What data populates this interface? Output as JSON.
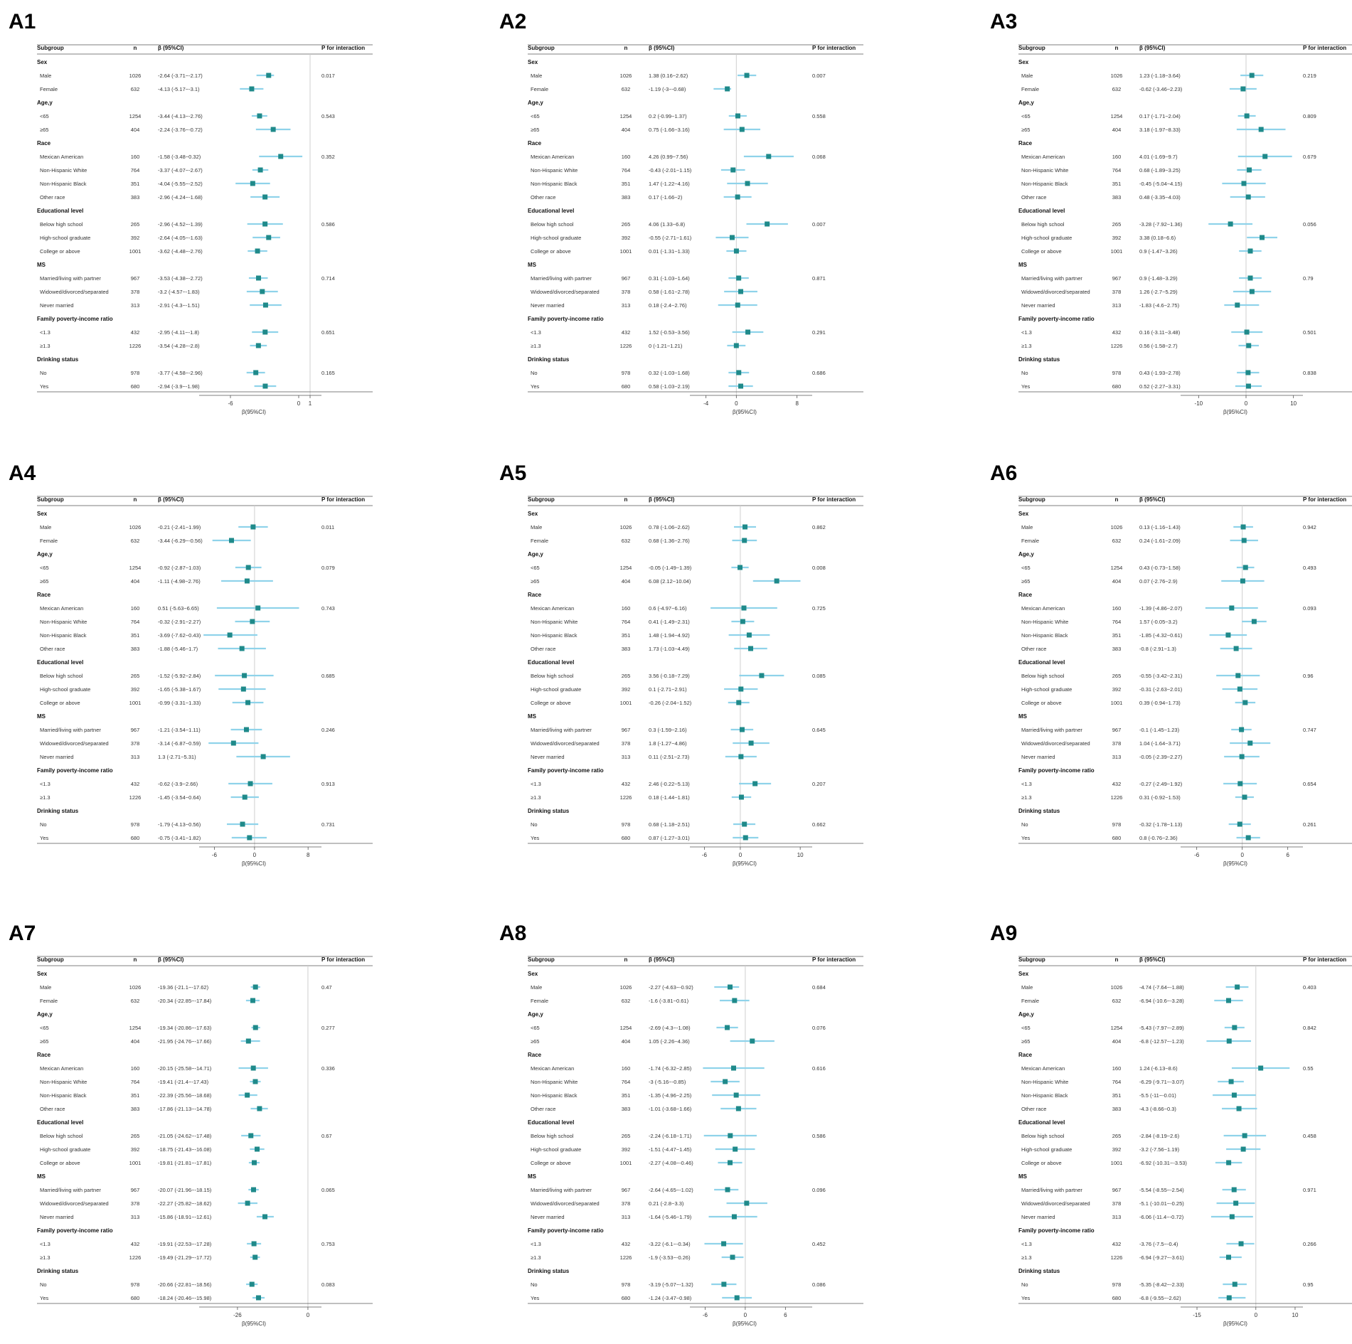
{
  "chart_data": {
    "type": "forest",
    "header": {
      "subgroup": "Subgroup",
      "n": "n",
      "beta": "β (95%CI)",
      "p": "P for interaction"
    },
    "xlabel": "β(95%CI)",
    "rows": [
      {
        "label": "Sex",
        "group": true
      },
      {
        "label": "Male",
        "n": 1026
      },
      {
        "label": "Female",
        "n": 632
      },
      {
        "label": "Age,y",
        "group": true
      },
      {
        "label": "<65",
        "n": 1254
      },
      {
        "label": "≥65",
        "n": 404
      },
      {
        "label": "Race",
        "group": true
      },
      {
        "label": "Mexican American",
        "n": 160
      },
      {
        "label": "Non-Hispanic White",
        "n": 764
      },
      {
        "label": "Non-Hispanic Black",
        "n": 351
      },
      {
        "label": "Other race",
        "n": 383
      },
      {
        "label": "Educational level",
        "group": true
      },
      {
        "label": "Below high school",
        "n": 265
      },
      {
        "label": "High-school graduate",
        "n": 392
      },
      {
        "label": "College or above",
        "n": 1001
      },
      {
        "label": "MS",
        "group": true
      },
      {
        "label": "Married/living with partner",
        "n": 967
      },
      {
        "label": "Widowed/divorced/separated",
        "n": 378
      },
      {
        "label": "Never married",
        "n": 313
      },
      {
        "label": "Family poverty-income ratio",
        "group": true
      },
      {
        "label": "<1.3",
        "n": 432
      },
      {
        "label": "≥1.3",
        "n": 1226
      },
      {
        "label": "Drinking status",
        "group": true
      },
      {
        "label": "No",
        "n": 978
      },
      {
        "label": "Yes",
        "n": 680
      }
    ],
    "panels": [
      {
        "id": "A1",
        "xlim": [
          -8,
          2
        ],
        "xticks": [
          -6,
          0,
          1
        ],
        "refline": 1,
        "p": [
          "0.017",
          "0.543",
          "0.352",
          "0.586",
          "0.714",
          "0.651",
          "0.165"
        ],
        "est": [
          [
            -2.64,
            -3.71,
            -2.17
          ],
          [
            -4.13,
            -5.17,
            -3.1
          ],
          [
            -3.44,
            -4.13,
            -2.76
          ],
          [
            -2.24,
            -3.76,
            -0.72
          ],
          [
            -1.58,
            -3.48,
            0.32
          ],
          [
            -3.37,
            -4.07,
            -2.67
          ],
          [
            -4.04,
            -5.55,
            -2.52
          ],
          [
            -2.96,
            -4.24,
            -1.68
          ],
          [
            -2.96,
            -4.52,
            -1.39
          ],
          [
            -2.64,
            -4.05,
            -1.63
          ],
          [
            -3.62,
            -4.48,
            -2.76
          ],
          [
            -3.53,
            -4.38,
            -2.72
          ],
          [
            -3.2,
            -4.57,
            -1.83
          ],
          [
            -2.91,
            -4.3,
            -1.51
          ],
          [
            -2.95,
            -4.11,
            -1.8
          ],
          [
            -3.54,
            -4.28,
            -2.8
          ],
          [
            -3.77,
            -4.58,
            -2.96
          ],
          [
            -2.94,
            -3.9,
            -1.98
          ]
        ]
      },
      {
        "id": "A2",
        "xlim": [
          -5,
          10
        ],
        "xticks": [
          -4,
          0,
          8
        ],
        "refline": 0,
        "p": [
          "0.007",
          "0.558",
          "0.068",
          "0.007",
          "0.871",
          "0.291",
          "0.686"
        ],
        "est": [
          [
            1.38,
            0.16,
            2.62
          ],
          [
            -1.19,
            -3,
            -0.68
          ],
          [
            0.2,
            -0.99,
            1.37
          ],
          [
            0.75,
            -1.66,
            3.16
          ],
          [
            4.26,
            0.99,
            7.56
          ],
          [
            -0.43,
            -2.01,
            1.15
          ],
          [
            1.47,
            -1.22,
            4.16
          ],
          [
            0.17,
            -1.66,
            2
          ],
          [
            4.06,
            1.33,
            6.8
          ],
          [
            -0.55,
            -2.71,
            1.61
          ],
          [
            0.01,
            -1.31,
            1.33
          ],
          [
            0.31,
            -1.03,
            1.64
          ],
          [
            0.58,
            -1.61,
            2.78
          ],
          [
            0.18,
            -2.4,
            2.76
          ],
          [
            1.52,
            -0.53,
            3.56
          ],
          [
            0,
            -1.21,
            1.21
          ],
          [
            0.32,
            -1.03,
            1.68
          ],
          [
            0.58,
            -1.03,
            2.19
          ]
        ]
      },
      {
        "id": "A3",
        "xlim": [
          -12,
          12
        ],
        "xticks": [
          -10,
          0,
          10
        ],
        "refline": 0,
        "p": [
          "0.219",
          "0.809",
          "0.679",
          "0.056",
          "0.79",
          "0.501",
          "0.838"
        ],
        "est": [
          [
            1.23,
            -1.18,
            3.64
          ],
          [
            -0.62,
            -3.46,
            2.23
          ],
          [
            0.17,
            -1.71,
            2.04
          ],
          [
            3.18,
            -1.97,
            8.33
          ],
          [
            4.01,
            -1.69,
            9.7
          ],
          [
            0.68,
            -1.89,
            3.25
          ],
          [
            -0.45,
            -5.04,
            4.15
          ],
          [
            0.48,
            -3.35,
            4.03
          ],
          [
            -3.28,
            -7.92,
            1.36
          ],
          [
            3.38,
            0.18,
            6.6
          ],
          [
            0.9,
            -1.47,
            3.26
          ],
          [
            0.9,
            -1.48,
            3.29
          ],
          [
            1.26,
            -2.7,
            5.29
          ],
          [
            -1.83,
            -4.6,
            2.75
          ],
          [
            0.16,
            -3.11,
            3.48
          ],
          [
            0.56,
            -1.58,
            2.7
          ],
          [
            0.43,
            -1.93,
            2.78
          ],
          [
            0.52,
            -2.27,
            3.31
          ]
        ]
      },
      {
        "id": "A4",
        "xlim": [
          -7,
          10
        ],
        "xticks": [
          -6,
          0,
          8
        ],
        "refline": 0,
        "p": [
          "0.011",
          "0.079",
          "0.743",
          "0.685",
          "0.246",
          "0.913",
          "0.731"
        ],
        "est": [
          [
            -0.21,
            -2.41,
            1.99
          ],
          [
            -3.44,
            -6.29,
            -0.56
          ],
          [
            -0.92,
            -2.87,
            1.03
          ],
          [
            -1.11,
            -4.98,
            2.76
          ],
          [
            0.51,
            -5.63,
            6.65
          ],
          [
            -0.32,
            -2.91,
            2.27
          ],
          [
            -3.69,
            -7.62,
            0.43
          ],
          [
            -1.88,
            -5.46,
            1.7
          ],
          [
            -1.52,
            -5.92,
            2.84
          ],
          [
            -1.65,
            -5.38,
            1.67
          ],
          [
            -0.99,
            -3.31,
            1.33
          ],
          [
            -1.21,
            -3.54,
            1.11
          ],
          [
            -3.14,
            -6.87,
            0.59
          ],
          [
            1.3,
            -2.71,
            5.31
          ],
          [
            -0.62,
            -3.9,
            2.66
          ],
          [
            -1.45,
            -3.54,
            0.64
          ],
          [
            -1.79,
            -4.13,
            0.56
          ],
          [
            -0.75,
            -3.41,
            1.82
          ]
        ]
      },
      {
        "id": "A5",
        "xlim": [
          -7,
          12
        ],
        "xticks": [
          -6,
          0,
          10
        ],
        "refline": 0,
        "p": [
          "0.862",
          "0.008",
          "0.725",
          "0.085",
          "0.645",
          "0.207",
          "0.662"
        ],
        "est": [
          [
            0.78,
            -1.06,
            2.62
          ],
          [
            0.68,
            -1.36,
            2.76
          ],
          [
            -0.05,
            -1.49,
            1.39
          ],
          [
            6.08,
            2.12,
            10.04
          ],
          [
            0.6,
            -4.97,
            6.16
          ],
          [
            0.41,
            -1.49,
            2.31
          ],
          [
            1.48,
            -1.94,
            4.92
          ],
          [
            1.73,
            -1.03,
            4.49
          ],
          [
            3.56,
            -0.18,
            7.29
          ],
          [
            0.1,
            -2.71,
            2.91
          ],
          [
            -0.26,
            -2.04,
            1.52
          ],
          [
            0.3,
            -1.59,
            2.16
          ],
          [
            1.8,
            -1.27,
            4.86
          ],
          [
            0.11,
            -2.51,
            2.73
          ],
          [
            2.46,
            -0.22,
            5.13
          ],
          [
            0.18,
            -1.44,
            1.81
          ],
          [
            0.68,
            -1.18,
            2.51
          ],
          [
            0.87,
            -1.27,
            3.01
          ]
        ]
      },
      {
        "id": "A6",
        "xlim": [
          -7,
          8
        ],
        "xticks": [
          -6,
          0,
          6
        ],
        "refline": 0,
        "p": [
          "0.942",
          "0.493",
          "0.093",
          "0.96",
          "0.747",
          "0.654",
          "0.261"
        ],
        "est": [
          [
            0.13,
            -1.16,
            1.43
          ],
          [
            0.24,
            -1.61,
            2.09
          ],
          [
            0.43,
            -0.73,
            1.58
          ],
          [
            0.07,
            -2.76,
            2.9
          ],
          [
            -1.39,
            -4.86,
            2.07
          ],
          [
            1.57,
            -0.05,
            3.2
          ],
          [
            -1.85,
            -4.32,
            0.61
          ],
          [
            -0.8,
            -2.91,
            1.3
          ],
          [
            -0.55,
            -3.42,
            2.31
          ],
          [
            -0.31,
            -2.63,
            2.01
          ],
          [
            0.39,
            -0.94,
            1.73
          ],
          [
            -0.1,
            -1.45,
            1.23
          ],
          [
            1.04,
            -1.64,
            3.71
          ],
          [
            -0.05,
            -2.39,
            2.27
          ],
          [
            -0.27,
            -2.49,
            1.92
          ],
          [
            0.31,
            -0.92,
            1.53
          ],
          [
            -0.32,
            -1.78,
            1.13
          ],
          [
            0.8,
            -0.76,
            2.36
          ]
        ]
      },
      {
        "id": "A7",
        "xlim": [
          -37,
          5
        ],
        "xticks": [
          -26,
          0
        ],
        "refline": 0,
        "p": [
          "0.47",
          "0.277",
          "0.336",
          "0.67",
          "0.065",
          "0.753",
          "0.083"
        ],
        "est": [
          [
            -19.36,
            -21.1,
            -17.62
          ],
          [
            -20.34,
            -22.85,
            -17.84
          ],
          [
            -19.34,
            -20.86,
            -17.63
          ],
          [
            -21.95,
            -24.76,
            -17.66
          ],
          [
            -20.15,
            -25.58,
            -14.71
          ],
          [
            -19.41,
            -21.4,
            -17.43
          ],
          [
            -22.39,
            -25.56,
            -18.68
          ],
          [
            -17.86,
            -21.13,
            -14.78
          ],
          [
            -21.05,
            -24.62,
            -17.48
          ],
          [
            -18.75,
            -21.43,
            -16.08
          ],
          [
            -19.81,
            -21.81,
            -17.81
          ],
          [
            -20.07,
            -21.96,
            -18.15
          ],
          [
            -22.27,
            -25.82,
            -18.62
          ],
          [
            -15.86,
            -18.91,
            -12.61
          ],
          [
            -19.91,
            -22.53,
            -17.28
          ],
          [
            -19.49,
            -21.29,
            -17.72
          ],
          [
            -20.66,
            -22.81,
            -18.56
          ],
          [
            -18.24,
            -20.46,
            -15.98
          ]
        ]
      },
      {
        "id": "A8",
        "xlim": [
          -7,
          10
        ],
        "xticks": [
          -6,
          0,
          6
        ],
        "refline": 0,
        "p": [
          "0.684",
          "0.076",
          "0.616",
          "0.586",
          "0.096",
          "0.452",
          "0.086"
        ],
        "est": [
          [
            -2.27,
            -4.63,
            -0.92
          ],
          [
            -1.6,
            -3.81,
            0.61
          ],
          [
            -2.69,
            -4.3,
            -1.08
          ],
          [
            1.05,
            -2.26,
            4.36
          ],
          [
            -1.74,
            -6.32,
            2.85
          ],
          [
            -3,
            -5.16,
            -0.85
          ],
          [
            -1.35,
            -4.96,
            2.25
          ],
          [
            -1.01,
            -3.68,
            1.66
          ],
          [
            -2.24,
            -6.18,
            1.71
          ],
          [
            -1.51,
            -4.47,
            1.45
          ],
          [
            -2.27,
            -4.08,
            -0.46
          ],
          [
            -2.64,
            -4.65,
            -1.02
          ],
          [
            0.21,
            -2.8,
            3.3
          ],
          [
            -1.64,
            -5.46,
            1.79
          ],
          [
            -3.22,
            -6.1,
            -0.34
          ],
          [
            -1.9,
            -3.53,
            -0.26
          ],
          [
            -3.19,
            -5.07,
            -1.32
          ],
          [
            -1.24,
            -3.47,
            0.98
          ]
        ]
      },
      {
        "id": "A9",
        "xlim": [
          -17,
          12
        ],
        "xticks": [
          -15,
          0,
          10
        ],
        "refline": 0,
        "p": [
          "0.403",
          "0.842",
          "0.55",
          "0.458",
          "0.971",
          "0.266",
          "0.95"
        ],
        "est": [
          [
            -4.74,
            -7.64,
            -1.88
          ],
          [
            -6.94,
            -10.6,
            -3.28
          ],
          [
            -5.43,
            -7.97,
            -2.89
          ],
          [
            -6.8,
            -12.57,
            -1.23
          ],
          [
            1.24,
            -6.13,
            8.6
          ],
          [
            -6.29,
            -9.71,
            -3.07
          ],
          [
            -5.5,
            -11,
            -0.01
          ],
          [
            -4.3,
            -8.66,
            0.3
          ],
          [
            -2.84,
            -8.19,
            2.6
          ],
          [
            -3.2,
            -7.56,
            1.19
          ],
          [
            -6.92,
            -10.31,
            -3.53
          ],
          [
            -5.54,
            -8.55,
            -2.54
          ],
          [
            -5.1,
            -10.01,
            -0.25
          ],
          [
            -6.06,
            -11.4,
            -0.72
          ],
          [
            -3.76,
            -7.5,
            -0.4
          ],
          [
            -6.94,
            -9.27,
            -3.61
          ],
          [
            -5.35,
            -8.42,
            -2.33
          ],
          [
            -6.8,
            -9.55,
            -2.62
          ]
        ]
      }
    ]
  }
}
